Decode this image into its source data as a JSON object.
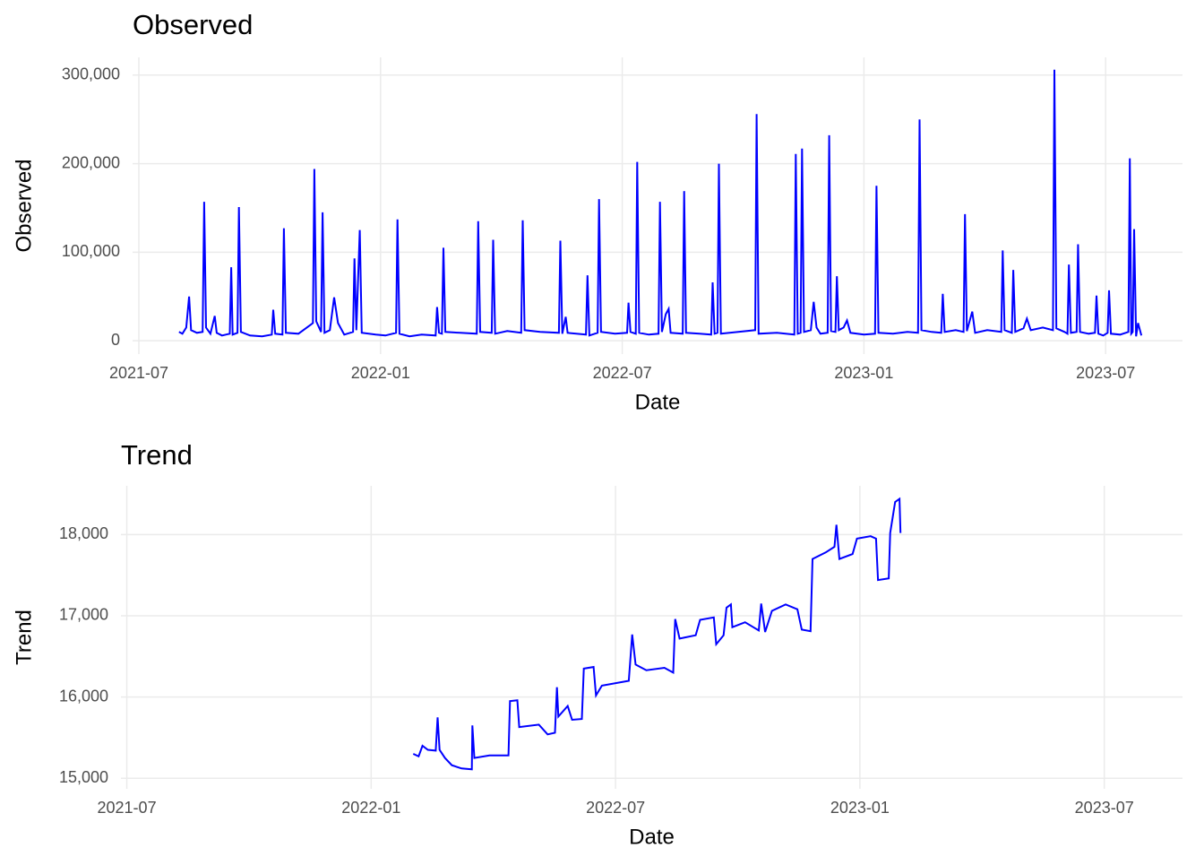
{
  "chart_data": [
    {
      "type": "line",
      "title": "Observed",
      "x_label": "Date",
      "y_label": "Observed",
      "color": "#0000ff",
      "grid": true,
      "xlim": [
        2021.487,
        2023.659
      ],
      "ylim": [
        -15000,
        320000
      ],
      "xticks": [
        {
          "value": 2021.5,
          "label": "2021-07"
        },
        {
          "value": 2022.0,
          "label": "2022-01"
        },
        {
          "value": 2022.5,
          "label": "2022-07"
        },
        {
          "value": 2023.0,
          "label": "2023-01"
        },
        {
          "value": 2023.5,
          "label": "2023-07"
        }
      ],
      "yticks": [
        0,
        {
          "value": 100000,
          "label": "100,000"
        },
        {
          "value": 200000,
          "label": "200,000"
        },
        {
          "value": 300000,
          "label": "300,000"
        }
      ],
      "x": [
        2021.583,
        2021.59,
        2021.598,
        2021.604,
        2021.608,
        2021.62,
        2021.632,
        2021.635,
        2021.639,
        2021.648,
        2021.657,
        2021.661,
        2021.672,
        2021.688,
        2021.691,
        2021.694,
        2021.704,
        2021.707,
        2021.711,
        2021.73,
        2021.755,
        2021.775,
        2021.778,
        2021.782,
        2021.797,
        2021.8,
        2021.804,
        2021.83,
        2021.855,
        2021.86,
        2021.863,
        2021.867,
        2021.877,
        2021.88,
        2021.884,
        2021.895,
        2021.904,
        2021.912,
        2021.925,
        2021.943,
        2021.946,
        2021.95,
        2021.957,
        2021.961,
        2021.99,
        2022.01,
        2022.032,
        2022.035,
        2022.039,
        2022.06,
        2022.085,
        2022.114,
        2022.117,
        2022.121,
        2022.127,
        2022.13,
        2022.134,
        2022.165,
        2022.199,
        2022.202,
        2022.206,
        2022.23,
        2022.233,
        2022.237,
        2022.262,
        2022.291,
        2022.294,
        2022.298,
        2022.33,
        2022.369,
        2022.372,
        2022.376,
        2022.383,
        2022.387,
        2022.405,
        2022.425,
        2022.428,
        2022.432,
        2022.449,
        2022.452,
        2022.456,
        2022.485,
        2022.51,
        2022.513,
        2022.517,
        2022.528,
        2022.531,
        2022.535,
        2022.555,
        2022.575,
        2022.578,
        2022.582,
        2022.59,
        2022.596,
        2022.6,
        2022.625,
        2022.628,
        2022.632,
        2022.66,
        2022.684,
        2022.687,
        2022.691,
        2022.697,
        2022.7,
        2022.704,
        2022.74,
        2022.775,
        2022.778,
        2022.782,
        2022.82,
        2022.856,
        2022.859,
        2022.863,
        2022.869,
        2022.872,
        2022.876,
        2022.89,
        2022.896,
        2022.902,
        2022.91,
        2022.925,
        2022.928,
        2022.932,
        2022.941,
        2022.944,
        2022.948,
        2022.958,
        2022.965,
        2022.972,
        2023.0,
        2023.023,
        2023.026,
        2023.03,
        2023.06,
        2023.09,
        2023.112,
        2023.115,
        2023.119,
        2023.14,
        2023.16,
        2023.163,
        2023.167,
        2023.19,
        2023.206,
        2023.209,
        2023.213,
        2023.224,
        2023.23,
        2023.255,
        2023.284,
        2023.287,
        2023.291,
        2023.306,
        2023.309,
        2023.313,
        2023.33,
        2023.337,
        2023.345,
        2023.37,
        2023.391,
        2023.394,
        2023.398,
        2023.415,
        2023.421,
        2023.424,
        2023.428,
        2023.44,
        2023.443,
        2023.447,
        2023.465,
        2023.478,
        2023.481,
        2023.485,
        2023.495,
        2023.504,
        2023.507,
        2023.511,
        2023.53,
        2023.547,
        2023.55,
        2023.553,
        2023.556,
        2023.559,
        2023.563,
        2023.567,
        2023.574
      ],
      "values": [
        10000,
        8000,
        15000,
        50000,
        12000,
        9000,
        10000,
        157000,
        15000,
        8000,
        28000,
        9000,
        6000,
        8000,
        83000,
        7000,
        9000,
        151000,
        10000,
        6000,
        5000,
        7000,
        35000,
        8000,
        7000,
        127000,
        9000,
        8000,
        18000,
        20000,
        194000,
        22000,
        10000,
        145000,
        9000,
        12000,
        49000,
        20000,
        7000,
        10000,
        93000,
        12000,
        125000,
        9000,
        7000,
        6000,
        9000,
        137000,
        8000,
        5000,
        7000,
        6000,
        38000,
        9000,
        8000,
        105000,
        10000,
        9000,
        8000,
        135000,
        10000,
        9000,
        114000,
        8000,
        11000,
        9000,
        136000,
        12000,
        10000,
        9000,
        113000,
        8000,
        27000,
        9000,
        8000,
        7000,
        74000,
        6000,
        9000,
        160000,
        10000,
        8000,
        9000,
        43000,
        10000,
        8000,
        202000,
        9000,
        7000,
        8000,
        157000,
        10000,
        30000,
        36000,
        9000,
        8000,
        169000,
        9000,
        8000,
        7000,
        66000,
        8000,
        9000,
        200000,
        8000,
        10000,
        12000,
        256000,
        8000,
        9000,
        7000,
        211000,
        8000,
        9000,
        217000,
        10000,
        12000,
        44000,
        15000,
        8000,
        9000,
        232000,
        11000,
        10000,
        73000,
        12000,
        15000,
        23000,
        9000,
        7000,
        8000,
        175000,
        9000,
        8000,
        10000,
        9000,
        250000,
        12000,
        10000,
        9000,
        53000,
        10000,
        12000,
        10000,
        143000,
        11000,
        33000,
        9000,
        12000,
        10000,
        102000,
        12000,
        9000,
        80000,
        10000,
        14000,
        25000,
        12000,
        15000,
        12000,
        306000,
        14000,
        10000,
        8000,
        86000,
        9000,
        10000,
        109000,
        10000,
        8000,
        9000,
        51000,
        8000,
        6000,
        9000,
        57000,
        8000,
        7000,
        10000,
        206000,
        8000,
        10000,
        126000,
        5000,
        20000,
        6000
      ]
    },
    {
      "type": "line",
      "title": "Trend",
      "x_label": "Date",
      "y_label": "Trend",
      "color": "#0000ff",
      "grid": true,
      "xlim": [
        2021.488,
        2023.66
      ],
      "ylim": [
        14870,
        18600
      ],
      "xticks": [
        {
          "value": 2021.5,
          "label": "2021-07"
        },
        {
          "value": 2022.0,
          "label": "2022-01"
        },
        {
          "value": 2022.5,
          "label": "2022-07"
        },
        {
          "value": 2023.0,
          "label": "2023-01"
        },
        {
          "value": 2023.5,
          "label": "2023-07"
        }
      ],
      "yticks": [
        {
          "value": 15000,
          "label": "15,000"
        },
        {
          "value": 16000,
          "label": "16,000"
        },
        {
          "value": 17000,
          "label": "17,000"
        },
        {
          "value": 18000,
          "label": "18,000"
        }
      ],
      "x": [
        2022.086,
        2022.097,
        2022.105,
        2022.116,
        2022.132,
        2022.136,
        2022.14,
        2022.151,
        2022.165,
        2022.185,
        2022.206,
        2022.207,
        2022.211,
        2022.242,
        2022.281,
        2022.284,
        2022.299,
        2022.303,
        2022.343,
        2022.361,
        2022.376,
        2022.38,
        2022.383,
        2022.402,
        2022.411,
        2022.431,
        2022.435,
        2022.455,
        2022.46,
        2022.472,
        2022.527,
        2022.534,
        2022.541,
        2022.563,
        2022.6,
        2022.618,
        2022.622,
        2022.631,
        2022.664,
        2022.673,
        2022.701,
        2022.706,
        2022.721,
        2022.727,
        2022.736,
        2022.739,
        2022.765,
        2022.793,
        2022.798,
        2022.806,
        2022.82,
        2022.848,
        2022.872,
        2022.881,
        2022.899,
        2022.903,
        2022.93,
        2022.948,
        2022.952,
        2022.958,
        2022.985,
        2022.994,
        2023.022,
        2023.033,
        2023.037,
        2023.059,
        2023.062,
        2023.072,
        2023.081,
        2023.083
      ],
      "values": [
        15300,
        15270,
        15400,
        15350,
        15340,
        15750,
        15350,
        15250,
        15160,
        15120,
        15110,
        15650,
        15250,
        15280,
        15280,
        15950,
        15960,
        15630,
        15660,
        15540,
        15560,
        16120,
        15760,
        15890,
        15720,
        15730,
        16350,
        16370,
        16020,
        16140,
        16200,
        16770,
        16400,
        16330,
        16360,
        16300,
        16960,
        16720,
        16760,
        16950,
        16980,
        16650,
        16760,
        17100,
        17140,
        16860,
        16920,
        16820,
        17150,
        16800,
        17060,
        17140,
        17080,
        16830,
        16810,
        17700,
        17780,
        17850,
        18120,
        17700,
        17760,
        17950,
        17980,
        17950,
        17440,
        17460,
        18020,
        18400,
        18440,
        18020
      ]
    }
  ]
}
